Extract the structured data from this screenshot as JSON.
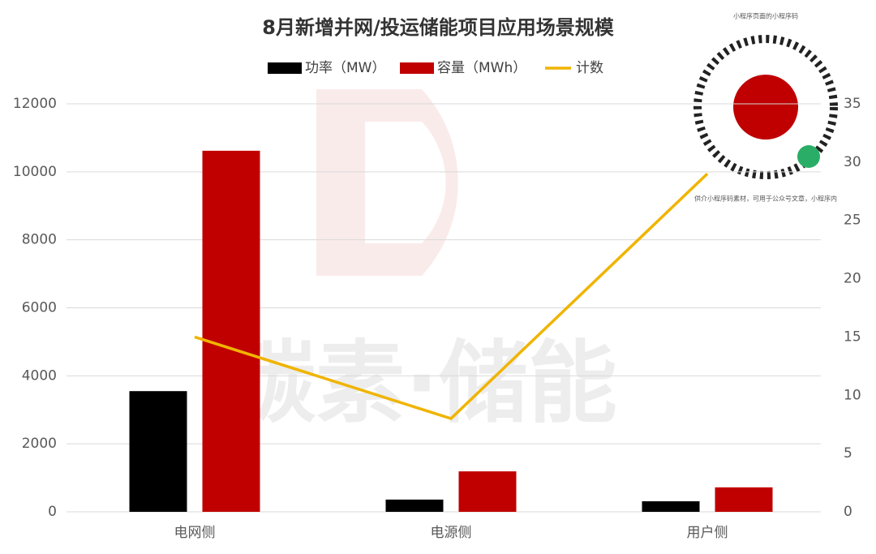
{
  "chart_data": {
    "type": "bar",
    "title": "8月新增并网/投运储能项目应用场景规模",
    "watermark": "碳素·储能",
    "qr_caption_top": "小程序页面的小程序码",
    "qr_caption_bottom": "供介小程序码素材，可用于公众号文章，小程序内",
    "categories": [
      "电网侧",
      "电源侧",
      "用户侧"
    ],
    "series": [
      {
        "name": "功率（MW）",
        "type": "bar",
        "color": "#000000",
        "values": [
          3550,
          360,
          310
        ]
      },
      {
        "name": "容量（MWh）",
        "type": "bar",
        "color": "#c00000",
        "values": [
          10620,
          1190,
          720
        ]
      },
      {
        "name": "计数",
        "type": "line",
        "axis": "y2",
        "color": "#f0b400",
        "values": [
          15,
          8,
          29
        ]
      }
    ],
    "ylim": [
      0,
      12000
    ],
    "yticks": [
      0,
      2000,
      4000,
      6000,
      8000,
      10000,
      12000
    ],
    "y2lim": [
      0,
      35
    ],
    "y2ticks": [
      0,
      5,
      10,
      15,
      20,
      25,
      30,
      35
    ],
    "grid": true,
    "legend": "top"
  }
}
